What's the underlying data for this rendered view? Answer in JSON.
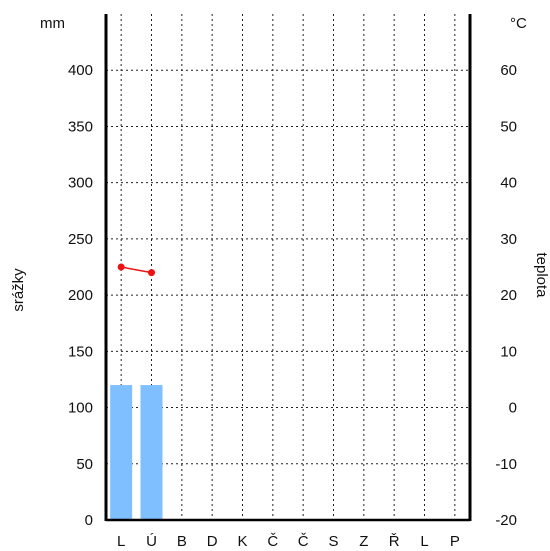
{
  "chart_data": {
    "type": "bar+line",
    "categories": [
      "L",
      "Ú",
      "B",
      "D",
      "K",
      "Č",
      "Č",
      "S",
      "Z",
      "Ř",
      "L",
      "P"
    ],
    "precipitation": {
      "axis_label": "srážky",
      "unit": "mm",
      "values": [
        120,
        120,
        null,
        null,
        null,
        null,
        null,
        null,
        null,
        null,
        null,
        null
      ],
      "ylim": [
        0,
        450
      ],
      "ticks": [
        0,
        50,
        100,
        150,
        200,
        250,
        300,
        350,
        400
      ],
      "color": "#80bfff"
    },
    "temperature": {
      "axis_label": "teplota",
      "unit": "°C",
      "values": [
        25,
        24,
        null,
        null,
        null,
        null,
        null,
        null,
        null,
        null,
        null,
        null
      ],
      "ylim": [
        -20,
        70
      ],
      "ticks": [
        -20,
        -10,
        0,
        10,
        20,
        30,
        40,
        50,
        60
      ],
      "color": "#ee1111"
    },
    "grid": true
  }
}
